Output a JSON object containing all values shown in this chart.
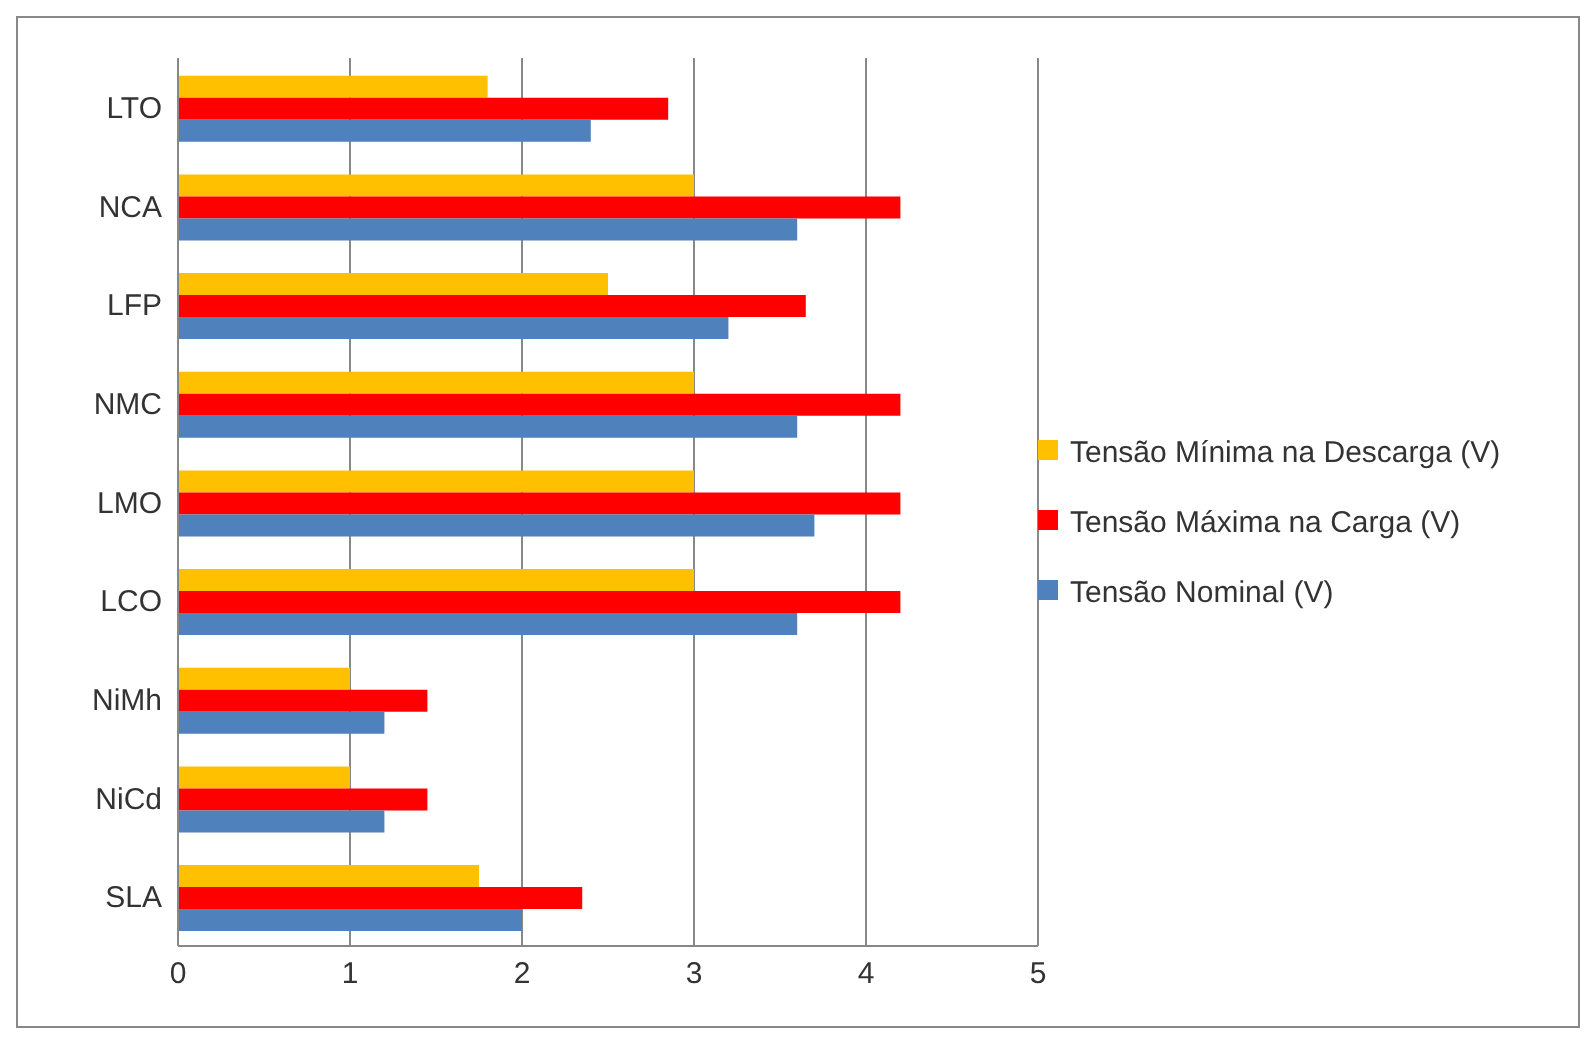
{
  "chart_data": {
    "type": "bar",
    "orientation": "horizontal",
    "categories": [
      "LTO",
      "NCA",
      "LFP",
      "NMC",
      "LMO",
      "LCO",
      "NiMh",
      "NiCd",
      "SLA"
    ],
    "series": [
      {
        "name": "Tensão Mínima na Descarga (V)",
        "color": "#ffc000",
        "values": [
          1.8,
          3.0,
          2.5,
          3.0,
          3.0,
          3.0,
          1.0,
          1.0,
          1.75
        ]
      },
      {
        "name": "Tensão Máxima na Carga (V)",
        "color": "#ff0000",
        "values": [
          2.85,
          4.2,
          3.65,
          4.2,
          4.2,
          4.2,
          1.45,
          1.45,
          2.35
        ]
      },
      {
        "name": "Tensão Nominal (V)",
        "color": "#4f81bd",
        "values": [
          2.4,
          3.6,
          3.2,
          3.6,
          3.7,
          3.6,
          1.2,
          1.2,
          2.0
        ]
      }
    ],
    "xlim": [
      0,
      5
    ],
    "xticks": [
      0,
      1,
      2,
      3,
      4,
      5
    ],
    "grid": "x",
    "legend": "right"
  }
}
